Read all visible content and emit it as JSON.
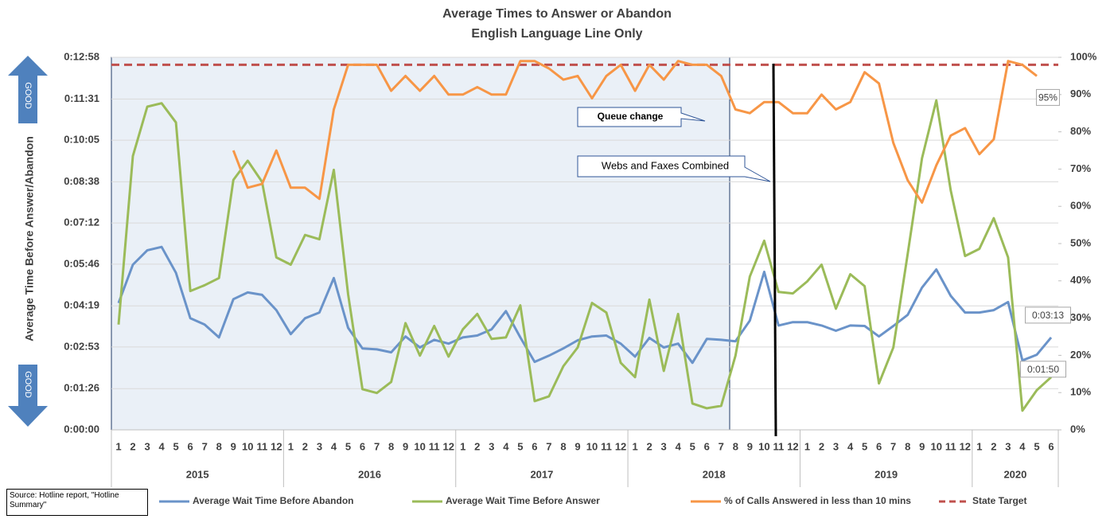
{
  "chart_data": {
    "type": "line",
    "title": "Average Times to Answer or Abandon",
    "subtitle": "English Language Line Only",
    "y_label": "Average Time Before Answer/Abandon",
    "good_labels": [
      "GOOD",
      "GOOD"
    ],
    "source": "Source: Hotline report, \"Hotline Summary\"",
    "categories": [
      "1",
      "2",
      "3",
      "4",
      "5",
      "6",
      "7",
      "8",
      "9",
      "10",
      "11",
      "12",
      "1",
      "2",
      "3",
      "4",
      "5",
      "6",
      "7",
      "8",
      "9",
      "10",
      "11",
      "12",
      "1",
      "2",
      "3",
      "4",
      "5",
      "6",
      "7",
      "8",
      "9",
      "10",
      "11",
      "12",
      "1",
      "2",
      "3",
      "4",
      "5",
      "6",
      "7",
      "8",
      "9",
      "10",
      "11",
      "12",
      "1",
      "2",
      "3",
      "4",
      "5",
      "6",
      "7",
      "8",
      "9",
      "10",
      "11",
      "12",
      "1",
      "2",
      "3",
      "4",
      "5",
      "6"
    ],
    "x_groups": [
      {
        "label": "2015",
        "months": 12
      },
      {
        "label": "2016",
        "months": 12
      },
      {
        "label": "2017",
        "months": 12
      },
      {
        "label": "2018",
        "months": 12
      },
      {
        "label": "2019",
        "months": 12
      },
      {
        "label": "2020",
        "months": 6
      }
    ],
    "ylim": [
      0,
      778
    ],
    "yticks": [
      {
        "value": 0,
        "label": "0:00:00"
      },
      {
        "value": 86,
        "label": "0:01:26"
      },
      {
        "value": 173,
        "label": "0:02:53"
      },
      {
        "value": 259,
        "label": "0:04:19"
      },
      {
        "value": 346,
        "label": "0:05:46"
      },
      {
        "value": 432,
        "label": "0:07:12"
      },
      {
        "value": 518,
        "label": "0:08:38"
      },
      {
        "value": 605,
        "label": "0:10:05"
      },
      {
        "value": 691,
        "label": "0:11:31"
      },
      {
        "value": 778,
        "label": "0:12:58"
      }
    ],
    "y2lim": [
      0,
      100
    ],
    "y2ticks": [
      {
        "value": 0,
        "label": "0%"
      },
      {
        "value": 10,
        "label": "10%"
      },
      {
        "value": 20,
        "label": "20%"
      },
      {
        "value": 30,
        "label": "30%"
      },
      {
        "value": 40,
        "label": "40%"
      },
      {
        "value": 50,
        "label": "50%"
      },
      {
        "value": 60,
        "label": "60%"
      },
      {
        "value": 70,
        "label": "70%"
      },
      {
        "value": 80,
        "label": "80%"
      },
      {
        "value": 90,
        "label": "90%"
      },
      {
        "value": 100,
        "label": "100%"
      }
    ],
    "grid": true,
    "series": [
      {
        "name": "Average Wait Time Before Abandon",
        "color": "#6a93c9",
        "axis": "y",
        "values": [
          265,
          345,
          375,
          382,
          328,
          233,
          220,
          193,
          273,
          287,
          282,
          250,
          200,
          233,
          245,
          317,
          213,
          170,
          168,
          162,
          195,
          172,
          188,
          180,
          193,
          197,
          210,
          248,
          193,
          142,
          155,
          170,
          187,
          195,
          197,
          180,
          153,
          192,
          172,
          180,
          140,
          190,
          188,
          185,
          228,
          330,
          218,
          225,
          225,
          218,
          207,
          218,
          217,
          195,
          217,
          240,
          297,
          335,
          280,
          245,
          245,
          250,
          267,
          145,
          157,
          193
        ],
        "value_labels": [
          null,
          null,
          null,
          null,
          null,
          null,
          null,
          null,
          null,
          null,
          null,
          null,
          null,
          null,
          null,
          null,
          null,
          null,
          null,
          null,
          null,
          null,
          null,
          null,
          null,
          null,
          null,
          null,
          null,
          null,
          null,
          null,
          null,
          null,
          null,
          null,
          null,
          null,
          null,
          null,
          null,
          null,
          null,
          null,
          null,
          null,
          null,
          null,
          null,
          null,
          null,
          null,
          null,
          null,
          null,
          null,
          null,
          null,
          null,
          null,
          null,
          null,
          null,
          null,
          null,
          "0:03:13"
        ]
      },
      {
        "name": "Average Wait Time Before Answer",
        "color": "#9bbb59",
        "axis": "y",
        "values": [
          220,
          572,
          675,
          682,
          642,
          290,
          302,
          317,
          522,
          562,
          518,
          360,
          345,
          407,
          398,
          543,
          283,
          85,
          77,
          100,
          223,
          155,
          217,
          153,
          210,
          242,
          190,
          193,
          260,
          60,
          70,
          133,
          172,
          265,
          245,
          140,
          110,
          272,
          123,
          242,
          55,
          45,
          50,
          155,
          320,
          395,
          288,
          285,
          310,
          345,
          253,
          325,
          300,
          97,
          172,
          367,
          567,
          688,
          500,
          363,
          378,
          442,
          360,
          40,
          83,
          110
        ],
        "value_labels": [
          null,
          null,
          null,
          null,
          null,
          null,
          null,
          null,
          null,
          null,
          null,
          null,
          null,
          null,
          null,
          null,
          null,
          null,
          null,
          null,
          null,
          null,
          null,
          null,
          null,
          null,
          null,
          null,
          null,
          null,
          null,
          null,
          null,
          null,
          null,
          null,
          null,
          null,
          null,
          null,
          null,
          null,
          null,
          null,
          null,
          null,
          null,
          null,
          null,
          null,
          null,
          null,
          null,
          null,
          null,
          null,
          null,
          null,
          null,
          null,
          null,
          null,
          null,
          null,
          null,
          "0:01:50"
        ]
      },
      {
        "name": "% of Calls Answered in less than 10 mins",
        "color": "#f79646",
        "axis": "y2",
        "values": [
          null,
          null,
          null,
          null,
          null,
          null,
          null,
          null,
          75,
          65,
          66,
          75,
          65,
          65,
          62,
          86,
          98,
          98,
          98,
          91,
          95,
          91,
          95,
          90,
          90,
          92,
          90,
          90,
          99,
          99,
          97,
          94,
          95,
          89,
          95,
          98,
          91,
          98,
          94,
          99,
          98,
          98,
          95,
          86,
          85,
          88,
          88,
          85,
          85,
          90,
          86,
          88,
          96,
          93,
          77,
          67,
          61,
          71,
          79,
          81,
          74,
          78,
          99,
          98,
          95,
          null
        ],
        "value_labels": [
          null,
          null,
          null,
          null,
          null,
          null,
          null,
          null,
          null,
          null,
          null,
          null,
          null,
          null,
          null,
          null,
          null,
          null,
          null,
          null,
          null,
          null,
          null,
          null,
          null,
          null,
          null,
          null,
          null,
          null,
          null,
          null,
          null,
          null,
          null,
          null,
          null,
          null,
          null,
          null,
          null,
          null,
          null,
          null,
          null,
          null,
          null,
          null,
          null,
          null,
          null,
          null,
          null,
          null,
          null,
          null,
          null,
          null,
          null,
          null,
          null,
          null,
          null,
          null,
          "95%",
          null
        ]
      }
    ],
    "target": {
      "name": "State Target",
      "value": 98,
      "color": "#c0504d",
      "axis": "y2"
    },
    "annotations": [
      "Queue change",
      "Webs and Faxes Combined"
    ]
  }
}
